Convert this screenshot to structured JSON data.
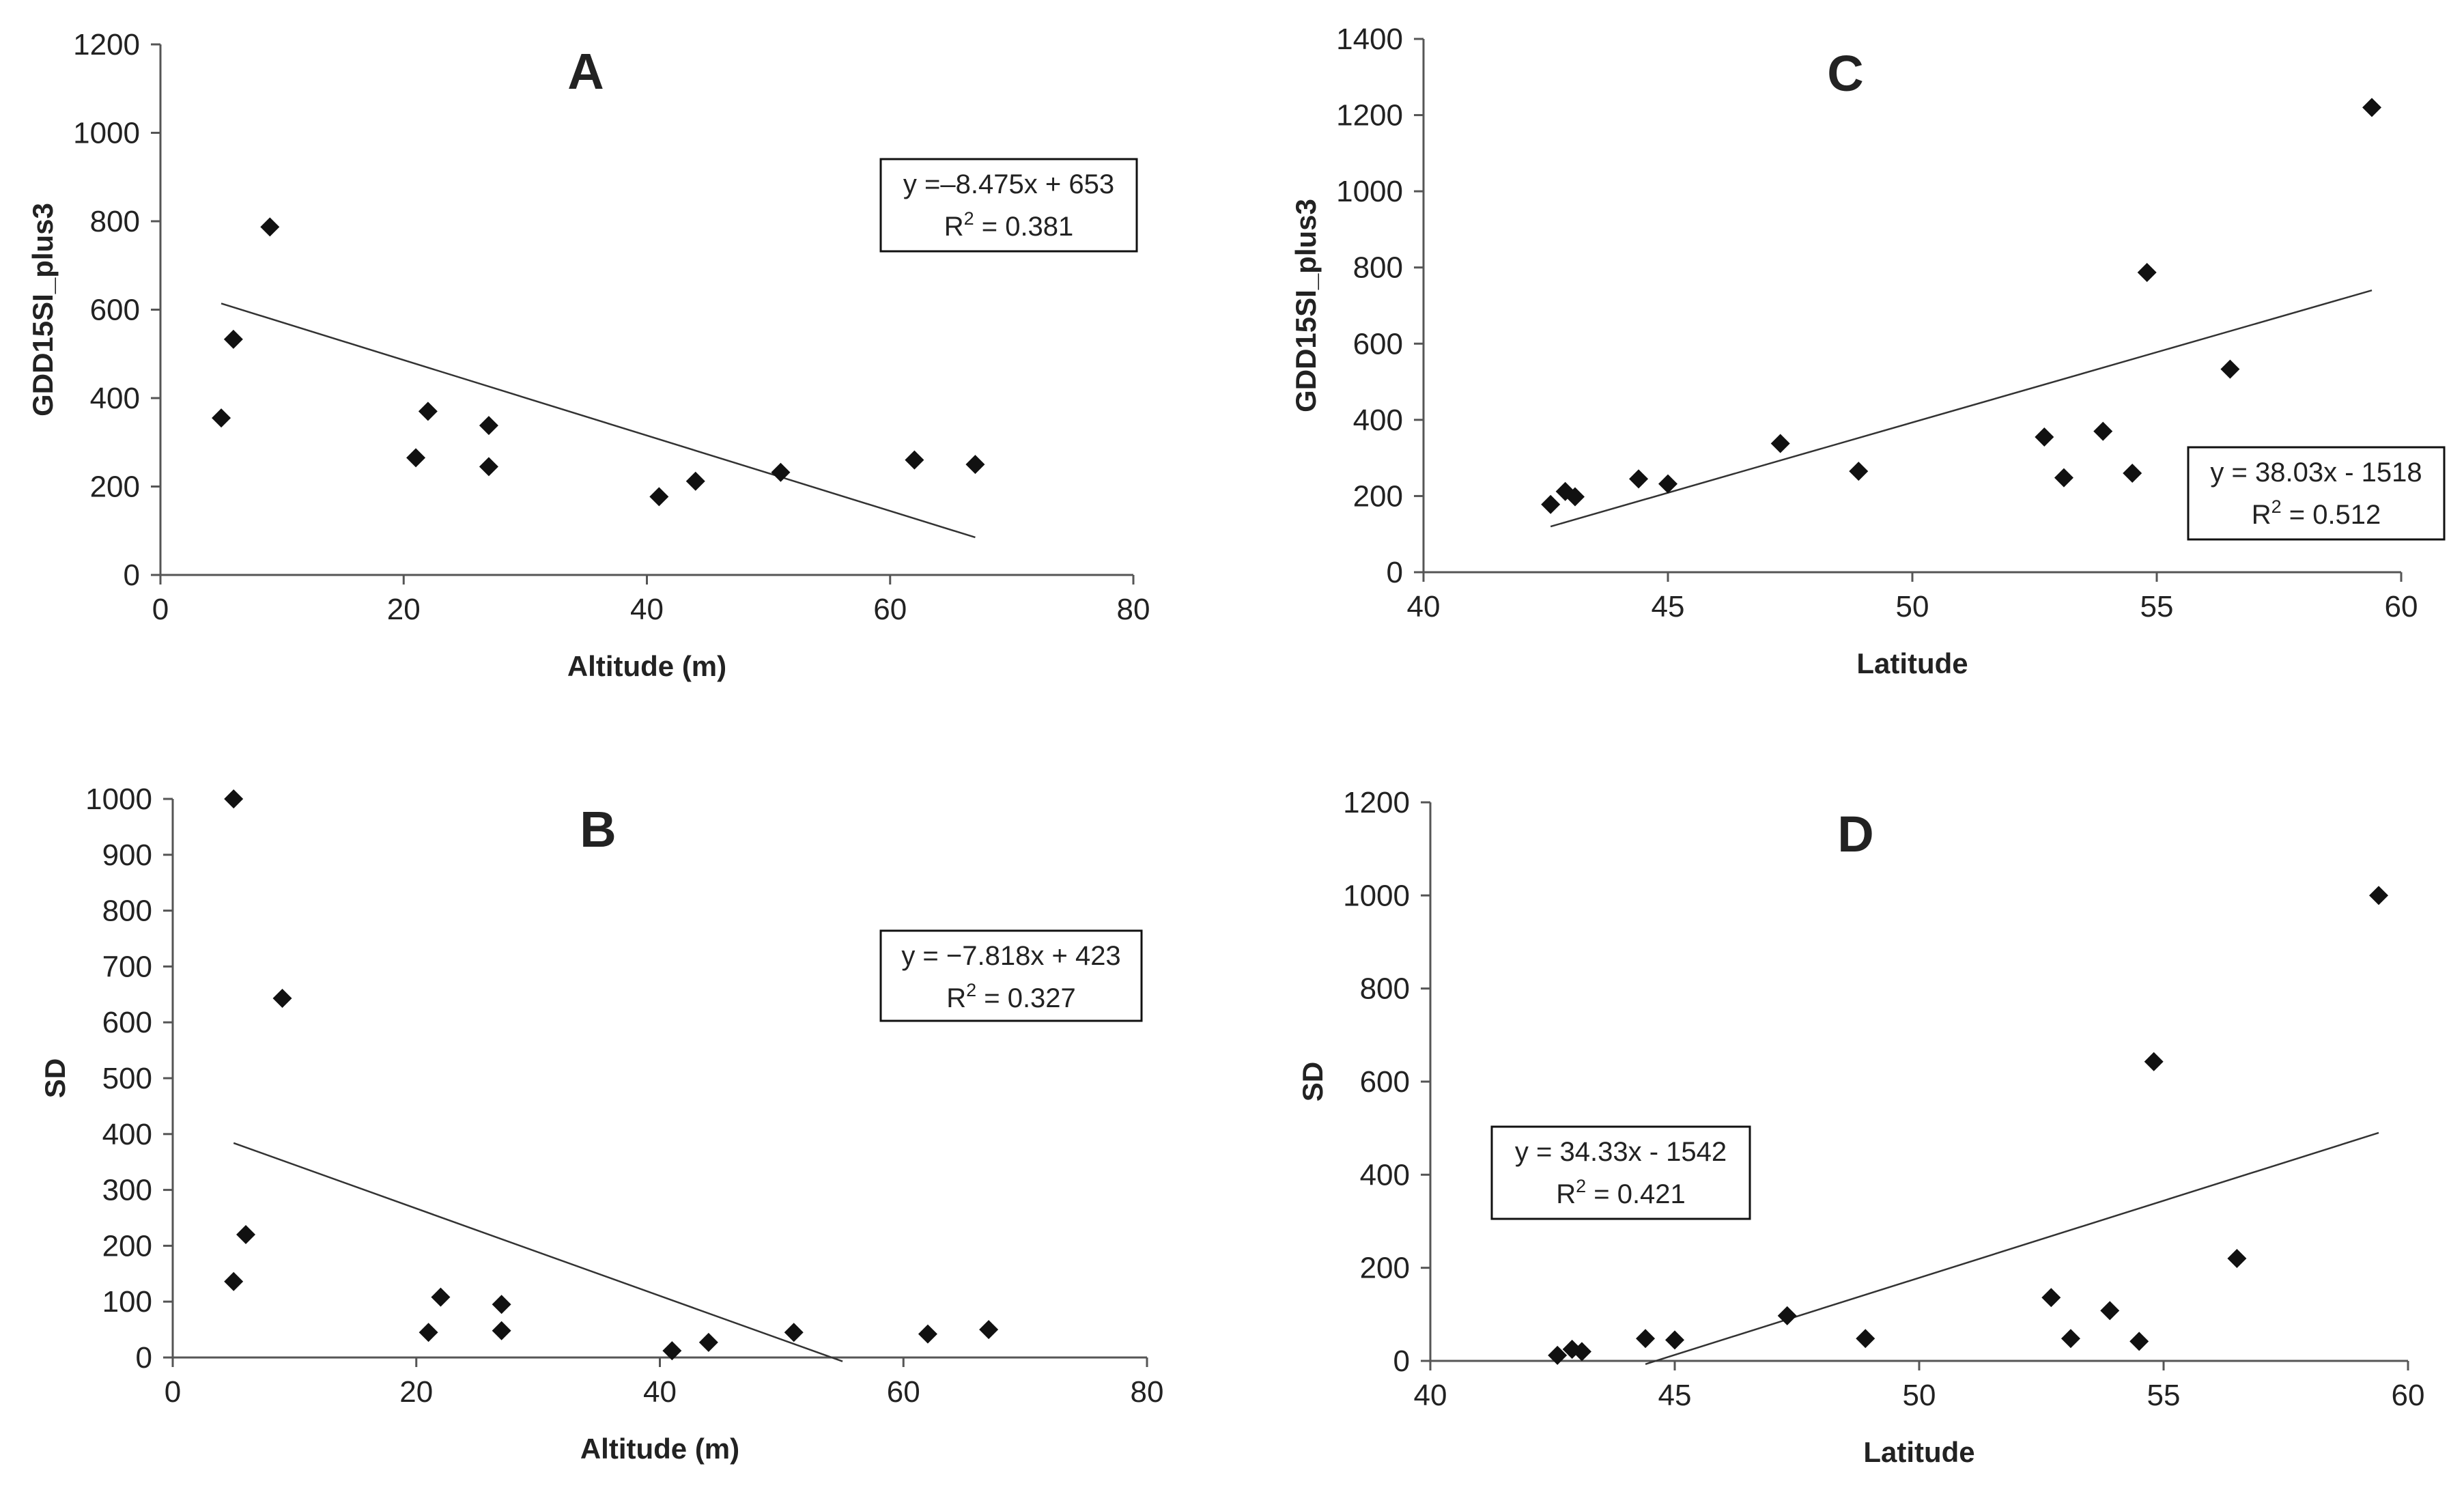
{
  "chart_data": [
    {
      "panel": "A",
      "type": "scatter",
      "xlabel": "Altitude (m)",
      "ylabel": "GDD15SI_plus3",
      "xlim": [
        0,
        80
      ],
      "ylim": [
        0,
        1200
      ],
      "xticks": [
        0,
        20,
        40,
        60,
        80
      ],
      "yticks": [
        0,
        200,
        400,
        600,
        800,
        1000,
        1200
      ],
      "points": [
        [
          5,
          355
        ],
        [
          6,
          533
        ],
        [
          9,
          787
        ],
        [
          21,
          265
        ],
        [
          22,
          370
        ],
        [
          27,
          338
        ],
        [
          27,
          245
        ],
        [
          41,
          177
        ],
        [
          44,
          212
        ],
        [
          51,
          232
        ],
        [
          62,
          260
        ],
        [
          67,
          250
        ]
      ],
      "trendline": [
        [
          5,
          614
        ],
        [
          67,
          85
        ]
      ],
      "equation": "y =–8.475x + 653",
      "r2_prefix": "R",
      "r2_sup": "2",
      "r2_value": " = 0.381",
      "legend_position": "top-right"
    },
    {
      "panel": "B",
      "type": "scatter",
      "xlabel": "Altitude (m)",
      "ylabel": "SD",
      "xlim": [
        0,
        80
      ],
      "ylim": [
        0,
        1000
      ],
      "xticks": [
        0,
        20,
        40,
        60,
        80
      ],
      "yticks": [
        0,
        100,
        200,
        300,
        400,
        500,
        600,
        700,
        800,
        900,
        1000
      ],
      "points": [
        [
          5,
          1000
        ],
        [
          5,
          136
        ],
        [
          6,
          220
        ],
        [
          9,
          643
        ],
        [
          21,
          45
        ],
        [
          22,
          108
        ],
        [
          27,
          95
        ],
        [
          27,
          48
        ],
        [
          41,
          12
        ],
        [
          44,
          27
        ],
        [
          51,
          45
        ],
        [
          62,
          42
        ],
        [
          67,
          50
        ]
      ],
      "trendline": [
        [
          5,
          384
        ],
        [
          55,
          -7
        ]
      ],
      "equation": "y = −7.818x + 423",
      "r2_prefix": "R",
      "r2_sup": "2",
      "r2_value": " = 0.327",
      "legend_position": "top-right"
    },
    {
      "panel": "C",
      "type": "scatter",
      "xlabel": "Latitude",
      "ylabel": "GDD15SI_plus3",
      "xlim": [
        40,
        60
      ],
      "ylim": [
        0,
        1400
      ],
      "xticks": [
        40,
        45,
        50,
        55,
        60
      ],
      "yticks": [
        0,
        200,
        400,
        600,
        800,
        1000,
        1200,
        1400
      ],
      "points": [
        [
          42.6,
          178
        ],
        [
          42.9,
          212
        ],
        [
          43.1,
          198
        ],
        [
          44.4,
          245
        ],
        [
          45.0,
          232
        ],
        [
          47.3,
          338
        ],
        [
          48.9,
          265
        ],
        [
          52.7,
          355
        ],
        [
          53.1,
          248
        ],
        [
          53.9,
          370
        ],
        [
          54.5,
          260
        ],
        [
          54.8,
          787
        ],
        [
          56.5,
          533
        ],
        [
          59.4,
          1220
        ]
      ],
      "trendline": [
        [
          42.6,
          120
        ],
        [
          59.4,
          740
        ]
      ],
      "equation": "y = 38.03x - 1518",
      "r2_prefix": "R",
      "r2_sup": "2",
      "r2_value": " = 0.512",
      "legend_position": "bottom-right"
    },
    {
      "panel": "D",
      "type": "scatter",
      "xlabel": "Latitude",
      "ylabel": "SD",
      "xlim": [
        40,
        60
      ],
      "ylim": [
        0,
        1200
      ],
      "xticks": [
        40,
        45,
        50,
        55,
        60
      ],
      "yticks": [
        0,
        200,
        400,
        600,
        800,
        1000,
        1200
      ],
      "points": [
        [
          42.6,
          12
        ],
        [
          42.9,
          25
        ],
        [
          43.1,
          20
        ],
        [
          44.4,
          48
        ],
        [
          45.0,
          45
        ],
        [
          47.3,
          97
        ],
        [
          48.9,
          48
        ],
        [
          52.7,
          136
        ],
        [
          53.1,
          48
        ],
        [
          53.9,
          108
        ],
        [
          54.5,
          42
        ],
        [
          54.8,
          643
        ],
        [
          56.5,
          220
        ],
        [
          59.4,
          1000
        ]
      ],
      "trendline": [
        [
          44.4,
          -7
        ],
        [
          59.4,
          490
        ]
      ],
      "equation": "y = 34.33x - 1542",
      "r2_prefix": "R",
      "r2_sup": "2",
      "r2_value": " = 0.421",
      "legend_position": "middle-left"
    }
  ]
}
